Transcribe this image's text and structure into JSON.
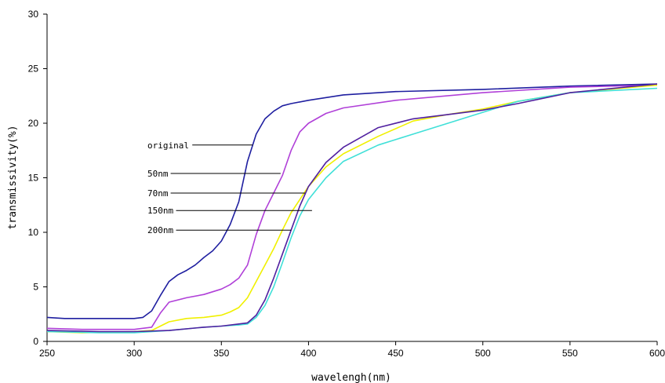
{
  "chart_data": {
    "type": "line",
    "title": "",
    "xlabel": "wavelengh(nm)",
    "ylabel": "transmissivity(%)",
    "xlim": [
      250,
      600
    ],
    "ylim": [
      0,
      30
    ],
    "xticks": [
      250,
      300,
      350,
      400,
      450,
      500,
      550,
      600
    ],
    "yticks": [
      0,
      5,
      10,
      15,
      20,
      25,
      30
    ],
    "grid": false,
    "legend": "none",
    "series": [
      {
        "name": "original",
        "color": "#1f1fa0",
        "label_x": 250,
        "label_y": 18.0,
        "pointer": [
          368,
          18.0
        ],
        "points": [
          [
            250,
            2.2
          ],
          [
            260,
            2.1
          ],
          [
            280,
            2.1
          ],
          [
            300,
            2.1
          ],
          [
            305,
            2.2
          ],
          [
            310,
            2.8
          ],
          [
            315,
            4.2
          ],
          [
            320,
            5.5
          ],
          [
            325,
            6.1
          ],
          [
            330,
            6.5
          ],
          [
            335,
            7.0
          ],
          [
            340,
            7.7
          ],
          [
            345,
            8.3
          ],
          [
            350,
            9.2
          ],
          [
            355,
            10.7
          ],
          [
            360,
            12.8
          ],
          [
            365,
            16.5
          ],
          [
            370,
            19.0
          ],
          [
            375,
            20.4
          ],
          [
            380,
            21.1
          ],
          [
            385,
            21.6
          ],
          [
            390,
            21.8
          ],
          [
            400,
            22.1
          ],
          [
            420,
            22.6
          ],
          [
            450,
            22.9
          ],
          [
            500,
            23.1
          ],
          [
            550,
            23.4
          ],
          [
            600,
            23.6
          ]
        ]
      },
      {
        "name": "50nm",
        "color": "#b040d8",
        "label_x": 250,
        "label_y": 15.4,
        "pointer": [
          384,
          15.4
        ],
        "points": [
          [
            250,
            1.2
          ],
          [
            270,
            1.1
          ],
          [
            300,
            1.1
          ],
          [
            310,
            1.3
          ],
          [
            315,
            2.6
          ],
          [
            320,
            3.6
          ],
          [
            330,
            4.0
          ],
          [
            340,
            4.3
          ],
          [
            350,
            4.8
          ],
          [
            355,
            5.2
          ],
          [
            360,
            5.8
          ],
          [
            365,
            7.0
          ],
          [
            370,
            9.8
          ],
          [
            375,
            12.0
          ],
          [
            380,
            13.6
          ],
          [
            385,
            15.2
          ],
          [
            390,
            17.5
          ],
          [
            395,
            19.2
          ],
          [
            400,
            20.0
          ],
          [
            410,
            20.9
          ],
          [
            420,
            21.4
          ],
          [
            450,
            22.1
          ],
          [
            500,
            22.8
          ],
          [
            550,
            23.3
          ],
          [
            600,
            23.5
          ]
        ]
      },
      {
        "name": "70nm",
        "color": "#f0f000",
        "label_x": 250,
        "label_y": 13.6,
        "pointer": [
          398,
          13.6
        ],
        "points": [
          [
            250,
            0.9
          ],
          [
            270,
            0.8
          ],
          [
            300,
            0.9
          ],
          [
            310,
            1.0
          ],
          [
            315,
            1.4
          ],
          [
            320,
            1.8
          ],
          [
            330,
            2.1
          ],
          [
            340,
            2.2
          ],
          [
            350,
            2.4
          ],
          [
            355,
            2.7
          ],
          [
            360,
            3.1
          ],
          [
            365,
            4.0
          ],
          [
            370,
            5.5
          ],
          [
            375,
            7.0
          ],
          [
            380,
            8.5
          ],
          [
            385,
            10.2
          ],
          [
            390,
            11.8
          ],
          [
            395,
            13.0
          ],
          [
            400,
            14.2
          ],
          [
            410,
            16.0
          ],
          [
            420,
            17.2
          ],
          [
            440,
            18.8
          ],
          [
            460,
            20.2
          ],
          [
            480,
            20.8
          ],
          [
            500,
            21.3
          ],
          [
            520,
            22.0
          ],
          [
            550,
            22.8
          ],
          [
            600,
            23.5
          ]
        ]
      },
      {
        "name": "150nm",
        "color": "#40e0d8",
        "label_x": 250,
        "label_y": 12.0,
        "pointer": [
          402,
          12.0
        ],
        "points": [
          [
            250,
            0.9
          ],
          [
            280,
            0.8
          ],
          [
            300,
            0.8
          ],
          [
            320,
            1.0
          ],
          [
            340,
            1.3
          ],
          [
            350,
            1.4
          ],
          [
            360,
            1.5
          ],
          [
            365,
            1.6
          ],
          [
            370,
            2.2
          ],
          [
            375,
            3.3
          ],
          [
            380,
            5.0
          ],
          [
            385,
            7.2
          ],
          [
            390,
            9.5
          ],
          [
            395,
            11.5
          ],
          [
            400,
            13.0
          ],
          [
            410,
            15.0
          ],
          [
            420,
            16.5
          ],
          [
            440,
            18.0
          ],
          [
            460,
            19.0
          ],
          [
            480,
            20.0
          ],
          [
            500,
            21.0
          ],
          [
            520,
            22.0
          ],
          [
            550,
            22.8
          ],
          [
            600,
            23.2
          ]
        ]
      },
      {
        "name": "200nm",
        "color": "#5020a0",
        "label_x": 250,
        "label_y": 10.2,
        "pointer": [
          390,
          10.2
        ],
        "points": [
          [
            250,
            1.0
          ],
          [
            280,
            0.9
          ],
          [
            300,
            0.9
          ],
          [
            320,
            1.0
          ],
          [
            340,
            1.3
          ],
          [
            350,
            1.4
          ],
          [
            360,
            1.6
          ],
          [
            365,
            1.7
          ],
          [
            370,
            2.4
          ],
          [
            375,
            3.8
          ],
          [
            380,
            5.8
          ],
          [
            385,
            8.0
          ],
          [
            390,
            10.2
          ],
          [
            395,
            12.4
          ],
          [
            400,
            14.2
          ],
          [
            410,
            16.4
          ],
          [
            420,
            17.8
          ],
          [
            440,
            19.6
          ],
          [
            460,
            20.4
          ],
          [
            480,
            20.8
          ],
          [
            500,
            21.2
          ],
          [
            520,
            21.8
          ],
          [
            550,
            22.8
          ],
          [
            600,
            23.6
          ]
        ]
      }
    ]
  }
}
